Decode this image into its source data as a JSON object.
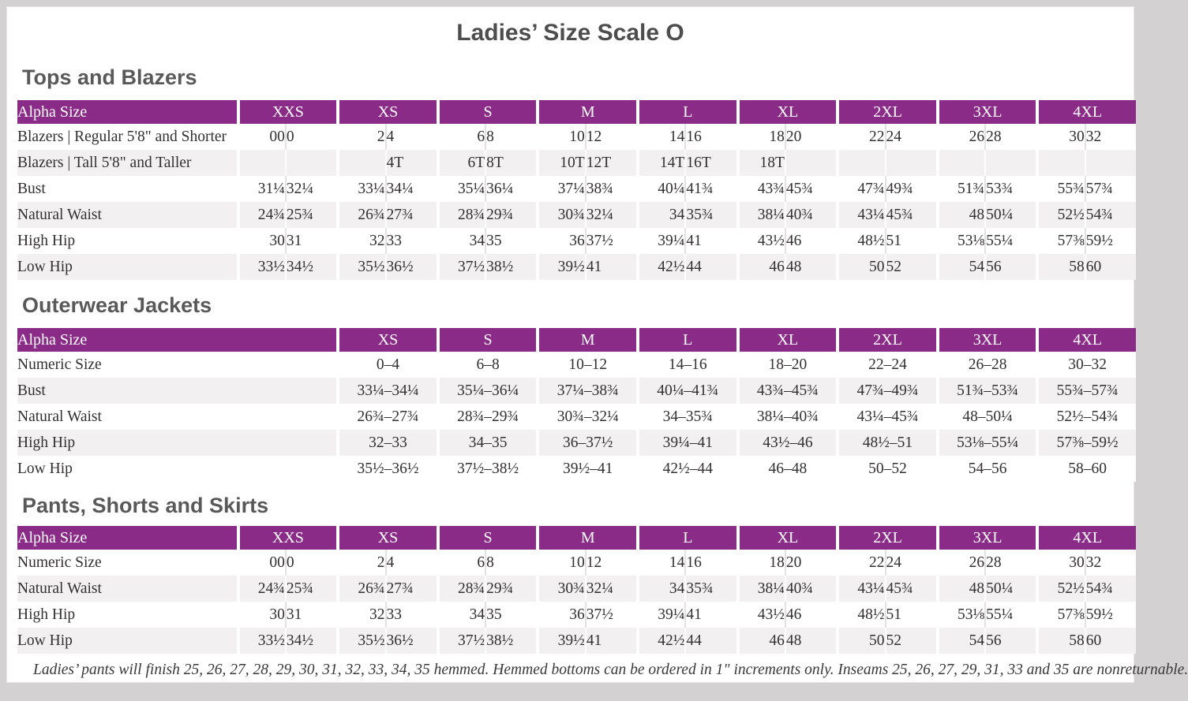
{
  "title": "Ladies’ Size Scale O",
  "colors": {
    "accent_purple": "#8a2b88",
    "row_stripe": "#f2f0f0",
    "heading_gray": "#595959",
    "text_gray": "#323030"
  },
  "tables": [
    {
      "heading": "Tops and Blazers",
      "type": "paired",
      "header_label": "Alpha Size",
      "sizes": [
        "XXS",
        "XS",
        "S",
        "M",
        "L",
        "XL",
        "2XL",
        "3XL",
        "4XL"
      ],
      "rows": [
        {
          "label": "Blazers | Regular 5'8\" and Shorter",
          "values": [
            "00",
            "0",
            "2",
            "4",
            "6",
            "8",
            "10",
            "12",
            "14",
            "16",
            "18",
            "20",
            "22",
            "24",
            "26",
            "28",
            "30",
            "32"
          ]
        },
        {
          "label": "Blazers | Tall 5'8\" and Taller",
          "values": [
            "",
            "",
            "",
            "4T",
            "6T",
            "8T",
            "10T",
            "12T",
            "14T",
            "16T",
            "18T",
            "",
            "",
            "",
            "",
            "",
            "",
            ""
          ]
        },
        {
          "label": "Bust",
          "values": [
            "31¼",
            "32¼",
            "33¼",
            "34¼",
            "35¼",
            "36¼",
            "37¼",
            "38¾",
            "40¼",
            "41¾",
            "43¾",
            "45¾",
            "47¾",
            "49¾",
            "51¾",
            "53¾",
            "55¾",
            "57¾"
          ]
        },
        {
          "label": "Natural Waist",
          "values": [
            "24¾",
            "25¾",
            "26¾",
            "27¾",
            "28¾",
            "29¾",
            "30¾",
            "32¼",
            "34",
            "35¾",
            "38¼",
            "40¾",
            "43¼",
            "45¾",
            "48",
            "50¼",
            "52½",
            "54¾"
          ]
        },
        {
          "label": "High Hip",
          "values": [
            "30",
            "31",
            "32",
            "33",
            "34",
            "35",
            "36",
            "37½",
            "39¼",
            "41",
            "43½",
            "46",
            "48½",
            "51",
            "53⅛",
            "55¼",
            "57⅜",
            "59½"
          ]
        },
        {
          "label": "Low Hip",
          "values": [
            "33½",
            "34½",
            "35½",
            "36½",
            "37½",
            "38½",
            "39½",
            "41",
            "42½",
            "44",
            "46",
            "48",
            "50",
            "52",
            "54",
            "56",
            "58",
            "60"
          ]
        }
      ]
    },
    {
      "heading": "Outerwear Jackets",
      "type": "single",
      "header_label": "Alpha Size",
      "sizes": [
        "XS",
        "S",
        "M",
        "L",
        "XL",
        "2XL",
        "3XL",
        "4XL"
      ],
      "rows": [
        {
          "label": "Numeric Size",
          "values": [
            "0–4",
            "6–8",
            "10–12",
            "14–16",
            "18–20",
            "22–24",
            "26–28",
            "30–32"
          ]
        },
        {
          "label": "Bust",
          "values": [
            "33¼–34¼",
            "35¼–36¼",
            "37¼–38¾",
            "40¼–41¾",
            "43¾–45¾",
            "47¾–49¾",
            "51¾–53¾",
            "55¾–57¾"
          ]
        },
        {
          "label": "Natural Waist",
          "values": [
            "26¾–27¾",
            "28¾–29¾",
            "30¾–32¼",
            "34–35¾",
            "38¼–40¾",
            "43¼–45¾",
            "48–50¼",
            "52½–54¾"
          ]
        },
        {
          "label": "High Hip",
          "values": [
            "32–33",
            "34–35",
            "36–37½",
            "39¼–41",
            "43½–46",
            "48½–51",
            "53⅛–55¼",
            "57⅜–59½"
          ]
        },
        {
          "label": "Low Hip",
          "values": [
            "35½–36½",
            "37½–38½",
            "39½–41",
            "42½–44",
            "46–48",
            "50–52",
            "54–56",
            "58–60"
          ]
        }
      ]
    },
    {
      "heading": "Pants, Shorts and Skirts",
      "type": "paired",
      "header_label": "Alpha Size",
      "sizes": [
        "XXS",
        "XS",
        "S",
        "M",
        "L",
        "XL",
        "2XL",
        "3XL",
        "4XL"
      ],
      "rows": [
        {
          "label": "Numeric Size",
          "values": [
            "00",
            "0",
            "2",
            "4",
            "6",
            "8",
            "10",
            "12",
            "14",
            "16",
            "18",
            "20",
            "22",
            "24",
            "26",
            "28",
            "30",
            "32"
          ]
        },
        {
          "label": "Natural Waist",
          "values": [
            "24¾",
            "25¾",
            "26¾",
            "27¾",
            "28¾",
            "29¾",
            "30¾",
            "32¼",
            "34",
            "35¾",
            "38¼",
            "40¾",
            "43¼",
            "45¾",
            "48",
            "50¼",
            "52½",
            "54¾"
          ]
        },
        {
          "label": "High Hip",
          "values": [
            "30",
            "31",
            "32",
            "33",
            "34",
            "35",
            "36",
            "37½",
            "39¼",
            "41",
            "43½",
            "46",
            "48½",
            "51",
            "53⅛",
            "55¼",
            "57⅜",
            "59½"
          ]
        },
        {
          "label": "Low Hip",
          "values": [
            "33½",
            "34½",
            "35½",
            "36½",
            "37½",
            "38½",
            "39½",
            "41",
            "42½",
            "44",
            "46",
            "48",
            "50",
            "52",
            "54",
            "56",
            "58",
            "60"
          ]
        }
      ]
    }
  ],
  "footnote": "Ladies’ pants will finish 25, 26, 27, 28, 29, 30, 31, 32, 33, 34, 35 hemmed. Hemmed bottoms can be ordered in 1\" increments only. Inseams 25, 26, 27, 29, 31, 33 and 35 are nonreturnable."
}
